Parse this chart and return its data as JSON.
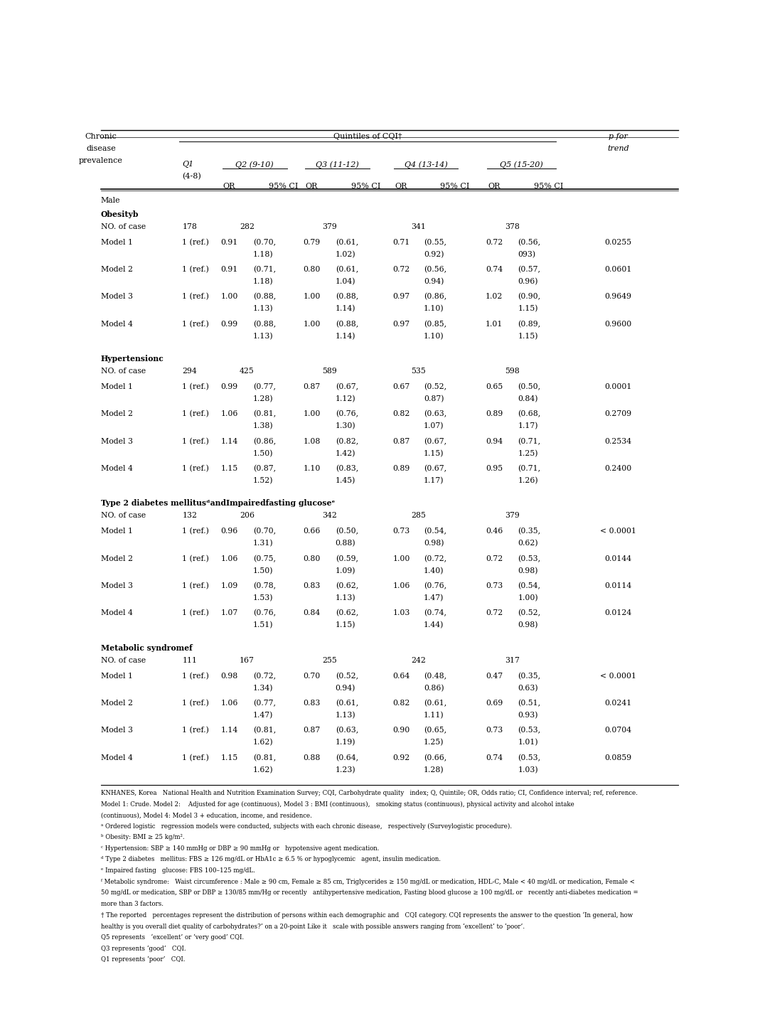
{
  "sections": [
    {
      "section_title": "Male",
      "subsections": [
        {
          "title": "Obesity",
          "title_sup": "b",
          "no_of_case": [
            "178",
            "282",
            "379",
            "341",
            "378"
          ],
          "models": [
            {
              "name": "Model 1",
              "q1": "1 (ref.)",
              "q2_or": "0.91",
              "q2_ci": "(0.70,\n1.18)",
              "q3_or": "0.79",
              "q3_ci": "(0.61,\n1.02)",
              "q4_or": "0.71",
              "q4_ci": "(0.55,\n0.92)",
              "q5_or": "0.72",
              "q5_ci": "(0.56,\n093)",
              "p": "0.0255"
            },
            {
              "name": "Model 2",
              "q1": "1 (ref.)",
              "q2_or": "0.91",
              "q2_ci": "(0.71,\n1.18)",
              "q3_or": "0.80",
              "q3_ci": "(0.61,\n1.04)",
              "q4_or": "0.72",
              "q4_ci": "(0.56,\n0.94)",
              "q5_or": "0.74",
              "q5_ci": "(0.57,\n0.96)",
              "p": "0.0601"
            },
            {
              "name": "Model 3",
              "q1": "1 (ref.)",
              "q2_or": "1.00",
              "q2_ci": "(0.88,\n1.13)",
              "q3_or": "1.00",
              "q3_ci": "(0.88,\n1.14)",
              "q4_or": "0.97",
              "q4_ci": "(0.86,\n1.10)",
              "q5_or": "1.02",
              "q5_ci": "(0.90,\n1.15)",
              "p": "0.9649"
            },
            {
              "name": "Model 4",
              "q1": "1 (ref.)",
              "q2_or": "0.99",
              "q2_ci": "(0.88,\n1.13)",
              "q3_or": "1.00",
              "q3_ci": "(0.88,\n1.14)",
              "q4_or": "0.97",
              "q4_ci": "(0.85,\n1.10)",
              "q5_or": "1.01",
              "q5_ci": "(0.89,\n1.15)",
              "p": "0.9600"
            }
          ]
        },
        {
          "title": "Hypertension",
          "title_sup": "c",
          "no_of_case": [
            "294",
            "425",
            "589",
            "535",
            "598"
          ],
          "models": [
            {
              "name": "Model 1",
              "q1": "1 (ref.)",
              "q2_or": "0.99",
              "q2_ci": "(0.77,\n1.28)",
              "q3_or": "0.87",
              "q3_ci": "(0.67,\n1.12)",
              "q4_or": "0.67",
              "q4_ci": "(0.52,\n0.87)",
              "q5_or": "0.65",
              "q5_ci": "(0.50,\n0.84)",
              "p": "0.0001"
            },
            {
              "name": "Model 2",
              "q1": "1 (ref.)",
              "q2_or": "1.06",
              "q2_ci": "(0.81,\n1.38)",
              "q3_or": "1.00",
              "q3_ci": "(0.76,\n1.30)",
              "q4_or": "0.82",
              "q4_ci": "(0.63,\n1.07)",
              "q5_or": "0.89",
              "q5_ci": "(0.68,\n1.17)",
              "p": "0.2709"
            },
            {
              "name": "Model 3",
              "q1": "1 (ref.)",
              "q2_or": "1.14",
              "q2_ci": "(0.86,\n1.50)",
              "q3_or": "1.08",
              "q3_ci": "(0.82,\n1.42)",
              "q4_or": "0.87",
              "q4_ci": "(0.67,\n1.15)",
              "q5_or": "0.94",
              "q5_ci": "(0.71,\n1.25)",
              "p": "0.2534"
            },
            {
              "name": "Model 4",
              "q1": "1 (ref.)",
              "q2_or": "1.15",
              "q2_ci": "(0.87,\n1.52)",
              "q3_or": "1.10",
              "q3_ci": "(0.83,\n1.45)",
              "q4_or": "0.89",
              "q4_ci": "(0.67,\n1.17)",
              "q5_or": "0.95",
              "q5_ci": "(0.71,\n1.26)",
              "p": "0.2400"
            }
          ]
        },
        {
          "title": "Type 2 diabetes mellitusᵈandImpairedfasting glucoseᵉ",
          "title_sup": "",
          "no_of_case": [
            "132",
            "206",
            "342",
            "285",
            "379"
          ],
          "models": [
            {
              "name": "Model 1",
              "q1": "1 (ref.)",
              "q2_or": "0.96",
              "q2_ci": "(0.70,\n1.31)",
              "q3_or": "0.66",
              "q3_ci": "(0.50,\n0.88)",
              "q4_or": "0.73",
              "q4_ci": "(0.54,\n0.98)",
              "q5_or": "0.46",
              "q5_ci": "(0.35,\n0.62)",
              "p": "< 0.0001"
            },
            {
              "name": "Model 2",
              "q1": "1 (ref.)",
              "q2_or": "1.06",
              "q2_ci": "(0.75,\n1.50)",
              "q3_or": "0.80",
              "q3_ci": "(0.59,\n1.09)",
              "q4_or": "1.00",
              "q4_ci": "(0.72,\n1.40)",
              "q5_or": "0.72",
              "q5_ci": "(0.53,\n0.98)",
              "p": "0.0144"
            },
            {
              "name": "Model 3",
              "q1": "1 (ref.)",
              "q2_or": "1.09",
              "q2_ci": "(0.78,\n1.53)",
              "q3_or": "0.83",
              "q3_ci": "(0.62,\n1.13)",
              "q4_or": "1.06",
              "q4_ci": "(0.76,\n1.47)",
              "q5_or": "0.73",
              "q5_ci": "(0.54,\n1.00)",
              "p": "0.0114"
            },
            {
              "name": "Model 4",
              "q1": "1 (ref.)",
              "q2_or": "1.07",
              "q2_ci": "(0.76,\n1.51)",
              "q3_or": "0.84",
              "q3_ci": "(0.62,\n1.15)",
              "q4_or": "1.03",
              "q4_ci": "(0.74,\n1.44)",
              "q5_or": "0.72",
              "q5_ci": "(0.52,\n0.98)",
              "p": "0.0124"
            }
          ]
        },
        {
          "title": "Metabolic syndrome",
          "title_sup": "f",
          "no_of_case": [
            "111",
            "167",
            "255",
            "242",
            "317"
          ],
          "models": [
            {
              "name": "Model 1",
              "q1": "1 (ref.)",
              "q2_or": "0.98",
              "q2_ci": "(0.72,\n1.34)",
              "q3_or": "0.70",
              "q3_ci": "(0.52,\n0.94)",
              "q4_or": "0.64",
              "q4_ci": "(0.48,\n0.86)",
              "q5_or": "0.47",
              "q5_ci": "(0.35,\n0.63)",
              "p": "< 0.0001"
            },
            {
              "name": "Model 2",
              "q1": "1 (ref.)",
              "q2_or": "1.06",
              "q2_ci": "(0.77,\n1.47)",
              "q3_or": "0.83",
              "q3_ci": "(0.61,\n1.13)",
              "q4_or": "0.82",
              "q4_ci": "(0.61,\n1.11)",
              "q5_or": "0.69",
              "q5_ci": "(0.51,\n0.93)",
              "p": "0.0241"
            },
            {
              "name": "Model 3",
              "q1": "1 (ref.)",
              "q2_or": "1.14",
              "q2_ci": "(0.81,\n1.62)",
              "q3_or": "0.87",
              "q3_ci": "(0.63,\n1.19)",
              "q4_or": "0.90",
              "q4_ci": "(0.65,\n1.25)",
              "q5_or": "0.73",
              "q5_ci": "(0.53,\n1.01)",
              "p": "0.0704"
            },
            {
              "name": "Model 4",
              "q1": "1 (ref.)",
              "q2_or": "1.15",
              "q2_ci": "(0.81,\n1.62)",
              "q3_or": "0.88",
              "q3_ci": "(0.64,\n1.23)",
              "q4_or": "0.92",
              "q4_ci": "(0.66,\n1.28)",
              "q5_or": "0.74",
              "q5_ci": "(0.53,\n1.03)",
              "p": "0.0859"
            }
          ]
        }
      ]
    }
  ],
  "footnotes": [
    "KNHANES, Korea   National Health and Nutrition Examination Survey; CQI, Carbohydrate quality   index; Q, Quintile; OR, Odds ratio; CI, Confidence interval; ref, reference.",
    "Model 1: Crude. Model 2:    Adjusted for age (continuous), Model 3 : BMI (continuous),   smoking status (continuous), physical activity and alcohol intake",
    "(continuous), Model 4: Model 3 + education, income, and residence.",
    "ᵃ Ordered logistic   regression models were conducted, subjects with each chronic disease,   respectively (Surveylogistic procedure).",
    "ᵇ Obesity: BMI ≥ 25 kg/m².",
    "ᶜ Hypertension: SBP ≥ 140 mmHg or DBP ≥ 90 mmHg or   hypotensive agent medication.",
    "ᵈ Type 2 diabetes   mellitus: FBS ≥ 126 mg/dL or HbA1c ≥ 6.5 % or hypoglycemic   agent, insulin medication.",
    "ᵉ Impaired fasting   glucose: FBS 100–125 mg/dL.",
    "ᶠ Metabolic syndrome:   Waist circumference : Male ≥ 90 cm, Female ≥ 85 cm, Triglycerides ≥ 150 mg/dL or medication, HDL-C, Male < 40 mg/dL or medication, Female <",
    "50 mg/dL or medication, SBP or DBP ≥ 130/85 mm/Hg or recently   antihypertensive medication, Fasting blood glucose ≥ 100 mg/dL or   recently anti-diabetes medication =",
    "more than 3 factors.",
    "† The reported   percentages represent the distribution of persons within each demographic and   CQI category. CQI represents the answer to the question ‘In general, how",
    "healthy is you overall diet quality of carbohydrates?’ on a 20-point Like it   scale with possible answers ranging from ‘excellent’ to ‘poor’.",
    "Q5 represents   ‘excellent’ or ‘very good’ CQI.",
    "Q3 represents ‘good’   CQI.",
    "Q1 represents ‘poor’   CQI."
  ],
  "col_x": {
    "disease": 0.01,
    "q1_label": 0.148,
    "q2_or": 0.228,
    "q2_ci": 0.268,
    "q3_or": 0.368,
    "q3_ci": 0.408,
    "q4_or": 0.52,
    "q4_ci": 0.558,
    "q5_or": 0.678,
    "q5_ci": 0.718,
    "p": 0.888
  },
  "fs": 7.8,
  "fs_hdr": 8.0,
  "fs_fn": 6.2
}
